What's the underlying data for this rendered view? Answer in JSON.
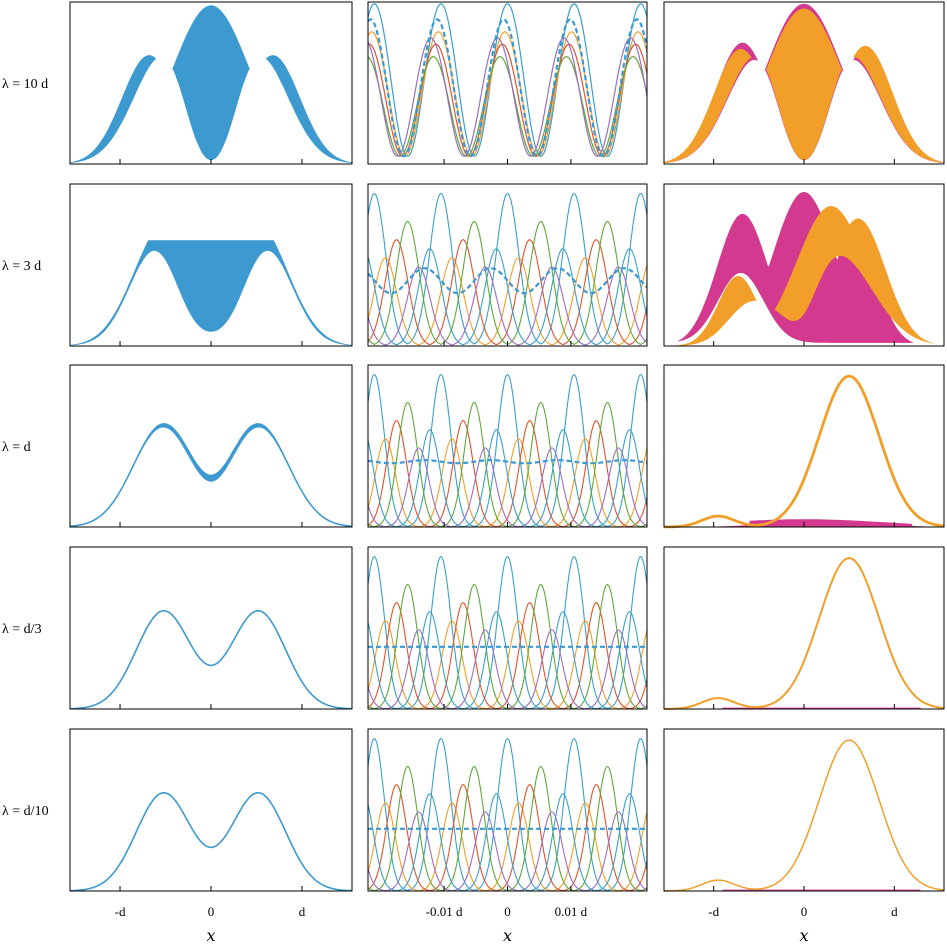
{
  "colors": {
    "blue": "#3d9ad1",
    "orange": "#f29f2a",
    "magenta": "#d2398f",
    "red": "#e0532b",
    "purple": "#9b6ec0",
    "green": "#5fa83a",
    "teal": "#3aa0c8"
  },
  "chart_data": {
    "type": "line",
    "layout": "5x3 grid of panels",
    "row_labels": [
      "λ = 10 d",
      "λ = 3 d",
      "λ = d",
      "λ = d/3",
      "λ = d/10"
    ],
    "columns": [
      {
        "name": "",
        "xlabel": "x",
        "xticks": [
          {
            "value": -1,
            "label": "-d"
          },
          {
            "value": 0,
            "label": "0"
          },
          {
            "value": 1,
            "label": "d"
          }
        ],
        "xlim": [
          -1.55,
          1.55
        ],
        "description_series": [
          "blue density envelope, band thickness decreases with smaller λ"
        ],
        "rows": [
          {
            "lower": [
              0.0,
              0.45,
              0.0,
              0.45,
              0.0
            ],
            "upper": [
              0.0,
              0.75,
              1.0,
              0.75,
              0.0
            ],
            "dip_center": 0.05
          },
          {
            "lower": [
              0.0,
              0.55,
              0.38,
              0.55,
              0.0
            ],
            "upper": [
              0.0,
              0.68,
              0.7,
              0.68,
              0.0
            ]
          },
          {
            "lower": [
              0.0,
              0.65,
              0.55,
              0.65,
              0.0
            ],
            "upper": [
              0.0,
              0.67,
              0.6,
              0.67,
              0.0
            ]
          },
          {
            "curve": "two bumps at ±0.5d, peaks 0.65, center 0.52"
          },
          {
            "curve": "two bumps at ±0.5d, peaks 0.65, center 0.52"
          }
        ]
      },
      {
        "name": "",
        "xlabel": "x",
        "xticks": [
          {
            "value": -0.01,
            "label": "-0.01 d"
          },
          {
            "value": 0,
            "label": "0"
          },
          {
            "value": 0.01,
            "label": "0.01 d"
          }
        ],
        "xlim": [
          -0.022,
          0.022
        ],
        "description_series": [
          "colored periodic basis curves (blue, orange, red, green, purple) and dashed blue mean"
        ],
        "dashed_mean_level": [
          0.78,
          0.42,
          0.42,
          0.4,
          0.4
        ],
        "dashed_mean_amplitude": [
          0.45,
          0.08,
          0.01,
          0.0,
          0.0
        ]
      },
      {
        "name": "",
        "xlabel": "x",
        "xticks": [
          {
            "value": -1,
            "label": "-d"
          },
          {
            "value": 0,
            "label": "0"
          },
          {
            "value": 1,
            "label": "d"
          }
        ],
        "xlim": [
          -1.55,
          1.55
        ],
        "series": [
          {
            "name": "",
            "color": "magenta"
          },
          {
            "name": "",
            "color": "orange"
          }
        ],
        "rows": [
          {
            "note": "both bands overlap, three-bump envelope peaking 0.97"
          },
          {
            "magenta_peak": 0.93,
            "orange_peak": 0.88,
            "orange_shifted_right": true
          },
          {
            "orange_peak_x": 0.5,
            "orange_peak": 0.97,
            "magenta_flat": 0.05
          },
          {
            "orange_peak_x": 0.5,
            "orange_peak": 0.97,
            "magenta_flat": 0.0
          },
          {
            "orange_peak_x": 0.5,
            "orange_peak": 0.97,
            "magenta_flat": 0.0
          }
        ]
      }
    ]
  }
}
